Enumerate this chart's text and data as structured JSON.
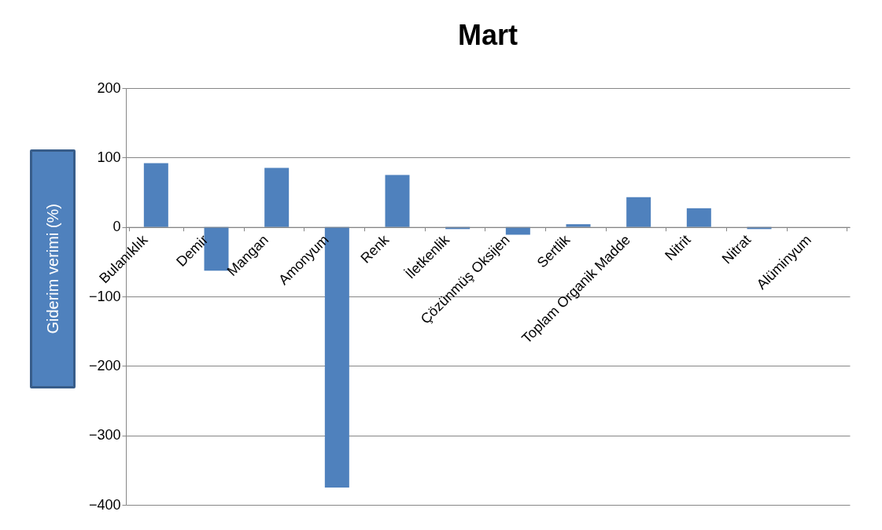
{
  "chart_data": {
    "type": "bar",
    "title": "Mart",
    "ylabel": "Giderim verimi (%)",
    "categories": [
      "Bulanıklık",
      "Demir",
      "Mangan",
      "Amonyum",
      "Renk",
      "İletkenlik",
      "Çözünmüş Oksijen",
      "Sertlik",
      "Toplam Organik Madde",
      "Nitrit",
      "Nitrat",
      "Alüminyum"
    ],
    "values": [
      92,
      -63,
      85,
      -375,
      75,
      -3,
      -11,
      4,
      43,
      27,
      -3,
      0
    ],
    "color": "#4f81bd",
    "ylim": [
      -400,
      200
    ],
    "yticks": [
      -400,
      -300,
      -200,
      -100,
      0,
      100,
      200
    ],
    "grid": "y"
  }
}
